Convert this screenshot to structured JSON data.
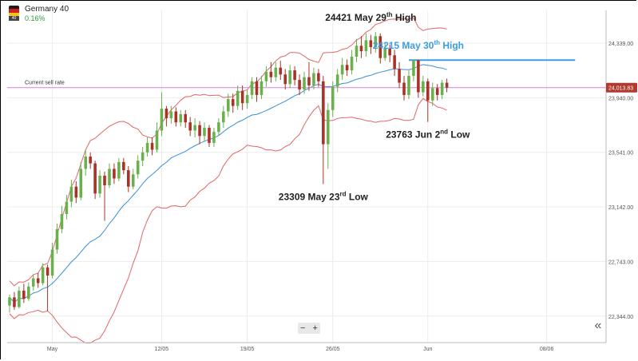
{
  "instrument": {
    "name": "Germany 40",
    "flag_tag": "40",
    "change": "0.16%",
    "change_color": "#2e9a3e"
  },
  "colors": {
    "bull": "#6ab04c",
    "bear": "#a93226",
    "band": "#e06666",
    "ma": "#3b8fd6",
    "sell_line": "#e58ce0",
    "resistance": "#3b9ee0",
    "price_tag": "#b03a2e"
  },
  "controls": {
    "zoom_out": "−",
    "zoom_in": "+",
    "scroll_icon": "double-chevron-left-icon",
    "scroll_glyph": "«"
  },
  "chart_data": {
    "type": "candlestick",
    "title": "",
    "xlabel": "",
    "ylabel": "",
    "ylim": [
      22150,
      24520
    ],
    "y_ticks": [
      "24,339.00",
      "23,940.00",
      "23,541.00",
      "23,142.00",
      "22,743.00",
      "22,344.00"
    ],
    "y_tick_values": [
      24339,
      23940,
      23541,
      23142,
      22743,
      22344
    ],
    "x_ticks": [
      {
        "label": "May",
        "candle": 9
      },
      {
        "label": "12/05",
        "candle": 32
      },
      {
        "label": "19/05",
        "candle": 50
      },
      {
        "label": "26/05",
        "candle": 68
      },
      {
        "label": "Jun",
        "candle": 88
      },
      {
        "label": "08/06",
        "candle": 113
      }
    ],
    "candle_count_span": 126,
    "current_sell_rate": {
      "label": "Current sell rate",
      "value": 24013.83,
      "tag": "24,013.83"
    },
    "resistance": {
      "value": 24215,
      "label": "24215 May 30th High"
    },
    "annotations": [
      {
        "text": "24421 May 29th High",
        "value": 24421,
        "candle": 76,
        "position": "above"
      },
      {
        "text": "24215 May 30th High",
        "value": 24215,
        "candle": 86,
        "position": "above",
        "color": "#3b9ee0"
      },
      {
        "text": "23763 Jun 2nd Low",
        "value": 23763,
        "candle": 88,
        "position": "below"
      },
      {
        "text": "23309 May 23rd Low",
        "value": 23309,
        "candle": 66,
        "position": "below"
      }
    ],
    "candles": [
      [
        22421,
        22481,
        22370,
        22501
      ],
      [
        22481,
        22410,
        22390,
        22520
      ],
      [
        22410,
        22530,
        22400,
        22560
      ],
      [
        22530,
        22470,
        22440,
        22580
      ],
      [
        22470,
        22560,
        22455,
        22590
      ],
      [
        22560,
        22620,
        22530,
        22650
      ],
      [
        22620,
        22585,
        22550,
        22660
      ],
      [
        22585,
        22700,
        22570,
        22730
      ],
      [
        22700,
        22640,
        22380,
        22720
      ],
      [
        22640,
        22830,
        22620,
        22880
      ],
      [
        22830,
        22980,
        22800,
        23020
      ],
      [
        22980,
        23090,
        22950,
        23150
      ],
      [
        23090,
        23180,
        23050,
        23230
      ],
      [
        23180,
        23290,
        23140,
        23340
      ],
      [
        23290,
        23210,
        23170,
        23330
      ],
      [
        23210,
        23420,
        23190,
        23470
      ],
      [
        23420,
        23510,
        23370,
        23560
      ],
      [
        23510,
        23460,
        23420,
        23540
      ],
      [
        23460,
        23240,
        23200,
        23480
      ],
      [
        23240,
        23370,
        23210,
        23410
      ],
      [
        23370,
        23300,
        23040,
        23400
      ],
      [
        23300,
        23420,
        23280,
        23460
      ],
      [
        23420,
        23350,
        23310,
        23460
      ],
      [
        23350,
        23470,
        23330,
        23500
      ],
      [
        23470,
        23410,
        23380,
        23500
      ],
      [
        23410,
        23290,
        23250,
        23440
      ],
      [
        23290,
        23380,
        23270,
        23420
      ],
      [
        23380,
        23480,
        23350,
        23520
      ],
      [
        23480,
        23540,
        23440,
        23580
      ],
      [
        23540,
        23610,
        23510,
        23650
      ],
      [
        23610,
        23560,
        23520,
        23650
      ],
      [
        23560,
        23700,
        23540,
        23760
      ],
      [
        23700,
        23860,
        23660,
        23980
      ],
      [
        23860,
        23790,
        23730,
        23880
      ],
      [
        23790,
        23840,
        23750,
        23880
      ],
      [
        23840,
        23760,
        23730,
        23870
      ],
      [
        23760,
        23820,
        23730,
        23850
      ],
      [
        23820,
        23760,
        23720,
        23850
      ],
      [
        23760,
        23700,
        23660,
        23800
      ],
      [
        23700,
        23740,
        23650,
        23790
      ],
      [
        23740,
        23660,
        23600,
        23770
      ],
      [
        23660,
        23720,
        23620,
        23760
      ],
      [
        23720,
        23610,
        23580,
        23740
      ],
      [
        23610,
        23690,
        23580,
        23720
      ],
      [
        23690,
        23760,
        23660,
        23790
      ],
      [
        23760,
        23840,
        23720,
        23880
      ],
      [
        23840,
        23930,
        23800,
        23970
      ],
      [
        23930,
        23880,
        23830,
        23970
      ],
      [
        23880,
        23990,
        23850,
        24030
      ],
      [
        23990,
        23900,
        23850,
        24030
      ],
      [
        23900,
        23960,
        23860,
        24000
      ],
      [
        23960,
        24060,
        23930,
        24090
      ],
      [
        24060,
        23960,
        23910,
        24090
      ],
      [
        23960,
        24060,
        23930,
        24100
      ],
      [
        24060,
        24130,
        24020,
        24170
      ],
      [
        24130,
        24090,
        24050,
        24200
      ],
      [
        24090,
        24160,
        24060,
        24200
      ],
      [
        24160,
        24110,
        24070,
        24210
      ],
      [
        24110,
        24040,
        24000,
        24150
      ],
      [
        24040,
        24140,
        24010,
        24180
      ],
      [
        24140,
        24070,
        24030,
        24170
      ],
      [
        24070,
        24000,
        23960,
        24110
      ],
      [
        24000,
        24090,
        23970,
        24130
      ],
      [
        24090,
        24030,
        23990,
        24200
      ],
      [
        24030,
        24120,
        24000,
        24160
      ],
      [
        24120,
        24060,
        24020,
        24150
      ],
      [
        24060,
        23600,
        23309,
        24100
      ],
      [
        23600,
        23850,
        23420,
        23900
      ],
      [
        23850,
        24020,
        23800,
        24060
      ],
      [
        24020,
        24110,
        23980,
        24150
      ],
      [
        24110,
        24180,
        24070,
        24230
      ],
      [
        24180,
        24140,
        24100,
        24220
      ],
      [
        24140,
        24240,
        24110,
        24290
      ],
      [
        24240,
        24320,
        24200,
        24370
      ],
      [
        24320,
        24280,
        24230,
        24390
      ],
      [
        24280,
        24360,
        24240,
        24410
      ],
      [
        24360,
        24310,
        24260,
        24400
      ],
      [
        24310,
        24390,
        24270,
        24421
      ],
      [
        24390,
        24230,
        24190,
        24410
      ],
      [
        24230,
        24300,
        24210,
        24340
      ],
      [
        24300,
        24250,
        24200,
        24330
      ],
      [
        24250,
        24150,
        24100,
        24290
      ],
      [
        24150,
        24050,
        24010,
        24200
      ],
      [
        24050,
        23960,
        23920,
        24100
      ],
      [
        23960,
        24100,
        23930,
        24140
      ],
      [
        24100,
        24215,
        24060,
        24215
      ],
      [
        24215,
        23980,
        23940,
        24215
      ],
      [
        23980,
        24060,
        23950,
        24100
      ],
      [
        24060,
        23920,
        23763,
        24080
      ],
      [
        23920,
        24010,
        23880,
        24050
      ],
      [
        24010,
        23960,
        23920,
        24040
      ],
      [
        23960,
        24050,
        23930,
        24070
      ],
      [
        24050,
        24013.83,
        23980,
        24080
      ]
    ]
  }
}
